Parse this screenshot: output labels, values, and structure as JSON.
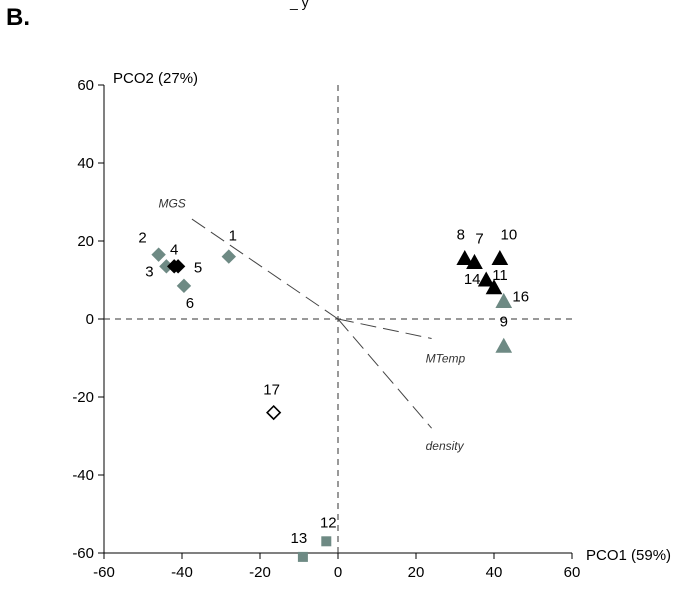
{
  "panel_label": "B.",
  "cropped_top_text": "_           y",
  "colors": {
    "gray": "#6e8a84",
    "black": "#000000",
    "open": "#ffffff"
  },
  "chart_data": {
    "type": "scatter",
    "xlabel": "PCO1 (59%)",
    "ylabel": "PCO2 (27%)",
    "xlim": [
      -60,
      60
    ],
    "ylim": [
      -60,
      60
    ],
    "xticks": [
      "-60",
      "-40",
      "-20",
      "0",
      "20",
      "40",
      "60"
    ],
    "yticks": [
      "60",
      "40",
      "20",
      "0",
      "-20",
      "-40",
      "-60"
    ],
    "grid": false,
    "reference_lines": "dashed lines at x = 0 and y = 0",
    "points": [
      {
        "label": "1",
        "x": -28,
        "y": 16,
        "marker": "diamond",
        "fill": "gray"
      },
      {
        "label": "2",
        "x": -46,
        "y": 16.5,
        "marker": "diamond",
        "fill": "gray"
      },
      {
        "label": "3",
        "x": -44,
        "y": 13.5,
        "marker": "diamond",
        "fill": "gray"
      },
      {
        "label": "4",
        "x": -42,
        "y": 13.5,
        "marker": "diamond",
        "fill": "black"
      },
      {
        "label": "5",
        "x": -41,
        "y": 13.5,
        "marker": "diamond",
        "fill": "black"
      },
      {
        "label": "6",
        "x": -39.5,
        "y": 8.5,
        "marker": "diamond",
        "fill": "gray"
      },
      {
        "label": "7",
        "x": 35,
        "y": 14.5,
        "marker": "triangle",
        "fill": "black"
      },
      {
        "label": "8",
        "x": 32.5,
        "y": 15.5,
        "marker": "triangle",
        "fill": "black"
      },
      {
        "label": "9",
        "x": 42.5,
        "y": -7,
        "marker": "triangle",
        "fill": "gray"
      },
      {
        "label": "10",
        "x": 41.5,
        "y": 15.5,
        "marker": "triangle",
        "fill": "black"
      },
      {
        "label": "11",
        "x": 40,
        "y": 8,
        "marker": "triangle",
        "fill": "black"
      },
      {
        "label": "12",
        "x": -3,
        "y": -57,
        "marker": "square",
        "fill": "gray"
      },
      {
        "label": "13",
        "x": -9,
        "y": -61,
        "marker": "square",
        "fill": "gray"
      },
      {
        "label": "14",
        "x": 38,
        "y": 10,
        "marker": "triangle",
        "fill": "black"
      },
      {
        "label": "16",
        "x": 42.5,
        "y": 4.5,
        "marker": "triangle",
        "fill": "gray"
      },
      {
        "label": "17",
        "x": -16.5,
        "y": -24,
        "marker": "diamond",
        "fill": "open"
      }
    ],
    "vectors": [
      {
        "label": "MGS",
        "x": -38,
        "y": 26
      },
      {
        "label": "MTemp",
        "x": 24,
        "y": -5
      },
      {
        "label": "density",
        "x": 24,
        "y": -28
      }
    ]
  }
}
